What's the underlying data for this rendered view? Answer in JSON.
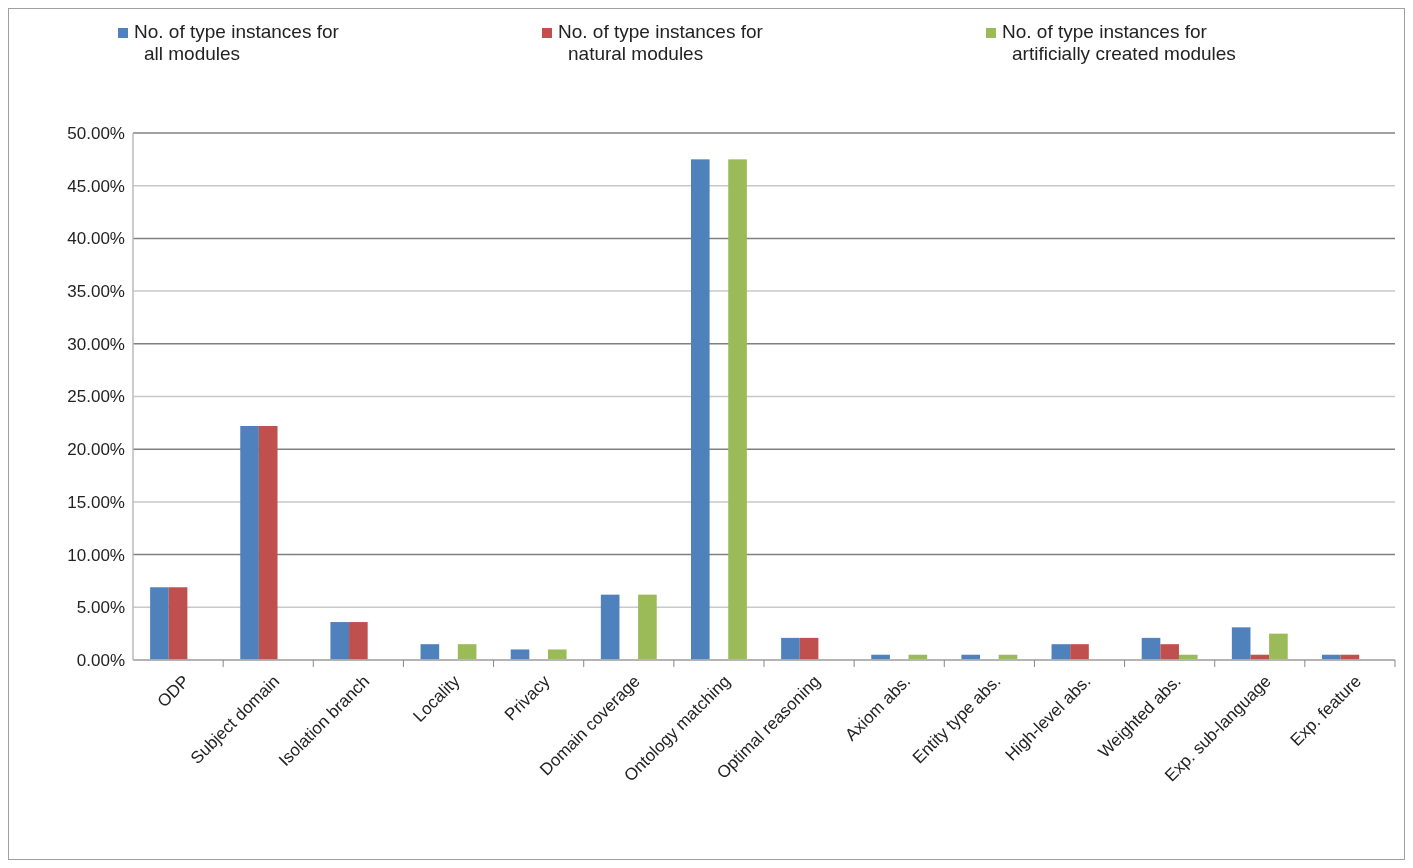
{
  "chart_data": {
    "type": "bar",
    "categories": [
      "ODP",
      "Subject domain",
      "Isolation branch",
      "Locality",
      "Privacy",
      "Domain coverage",
      "Ontology matching",
      "Optimal reasoning",
      "Axiom abs.",
      "Entity type abs.",
      "High-level abs.",
      "Weighted abs.",
      "Exp. sub-language",
      "Exp. feature"
    ],
    "series": [
      {
        "name": "No. of type instances for all modules",
        "color": "#4f81bd",
        "values": [
          6.9,
          22.2,
          3.6,
          1.5,
          1.0,
          6.2,
          47.5,
          2.1,
          0.5,
          0.5,
          1.5,
          2.1,
          3.1,
          0.5
        ]
      },
      {
        "name": "No. of type instances for natural modules",
        "color": "#c0504d",
        "values": [
          6.9,
          22.2,
          3.6,
          0,
          0,
          0,
          0,
          2.1,
          0,
          0,
          1.5,
          1.5,
          0.5,
          0.5
        ]
      },
      {
        "name": "No. of type instances for artificially created modules",
        "color": "#9bbb59",
        "values": [
          0,
          0,
          0,
          1.5,
          1.0,
          6.2,
          47.5,
          0,
          0.5,
          0.5,
          0,
          0.5,
          2.5,
          0
        ]
      }
    ],
    "ylim": [
      0,
      50
    ],
    "yticks": [
      {
        "value": 0,
        "label": "0.00%"
      },
      {
        "value": 5,
        "label": "5.00%"
      },
      {
        "value": 10,
        "label": "10.00%"
      },
      {
        "value": 15,
        "label": "15.00%"
      },
      {
        "value": 20,
        "label": "20.00%"
      },
      {
        "value": 25,
        "label": "25.00%"
      },
      {
        "value": 30,
        "label": "30.00%"
      },
      {
        "value": 35,
        "label": "35.00%"
      },
      {
        "value": 40,
        "label": "40.00%"
      },
      {
        "value": 45,
        "label": "45.00%"
      },
      {
        "value": 50,
        "label": "50.00%"
      }
    ],
    "grid": "y",
    "legend": "top"
  }
}
